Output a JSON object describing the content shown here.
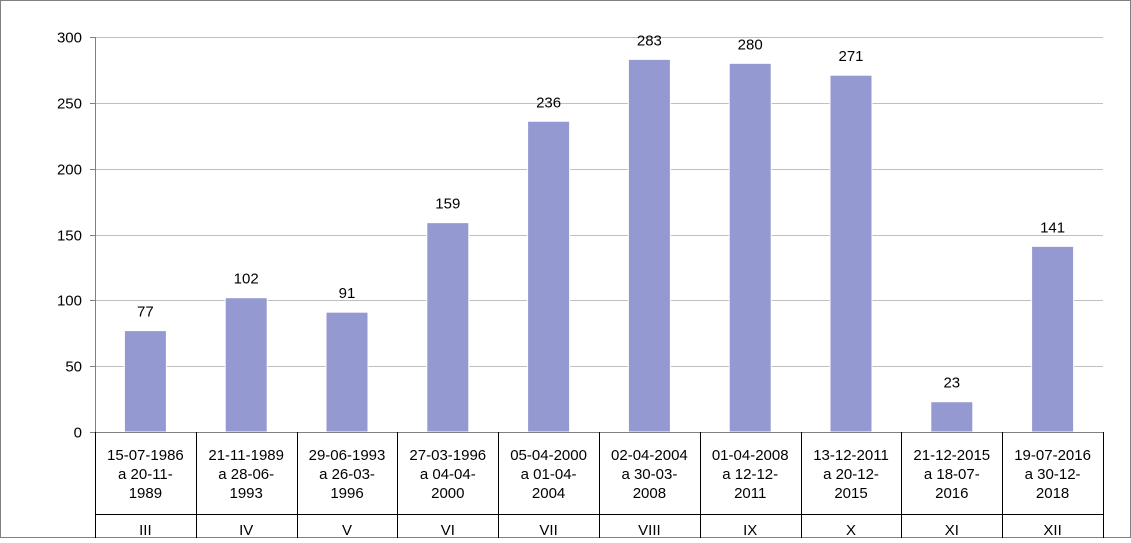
{
  "chart_data": {
    "type": "bar",
    "title": "",
    "xlabel": "",
    "ylabel": "",
    "ylim": [
      0,
      300
    ],
    "yticks": [
      0,
      50,
      100,
      150,
      200,
      250,
      300
    ],
    "grid": true,
    "legend": "none",
    "categories": [
      {
        "dates": [
          "15-07-1986",
          "a 20-11-",
          "1989"
        ],
        "legislature": "III"
      },
      {
        "dates": [
          "21-11-1989",
          "a 28-06-",
          "1993"
        ],
        "legislature": "IV"
      },
      {
        "dates": [
          "29-06-1993",
          "a 26-03-",
          "1996"
        ],
        "legislature": "V"
      },
      {
        "dates": [
          "27-03-1996",
          "a 04-04-",
          "2000"
        ],
        "legislature": "VI"
      },
      {
        "dates": [
          "05-04-2000",
          "a 01-04-",
          "2004"
        ],
        "legislature": "VII"
      },
      {
        "dates": [
          "02-04-2004",
          "a 30-03-",
          "2008"
        ],
        "legislature": "VIII"
      },
      {
        "dates": [
          "01-04-2008",
          "a 12-12-",
          "2011"
        ],
        "legislature": "IX"
      },
      {
        "dates": [
          "13-12-2011",
          "a 20-12-",
          "2015"
        ],
        "legislature": "X"
      },
      {
        "dates": [
          "21-12-2015",
          "a 18-07-",
          "2016"
        ],
        "legislature": "XI"
      },
      {
        "dates": [
          "19-07-2016",
          "a 30-12-",
          "2018"
        ],
        "legislature": "XII"
      }
    ],
    "series": [
      {
        "values": [
          77,
          102,
          91,
          159,
          236,
          283,
          280,
          271,
          23,
          141
        ]
      }
    ],
    "colors": {
      "bar_fill": "#9599d1",
      "bar_stroke": "#ffffff",
      "grid": "#bfbfbf",
      "axis": "#808080"
    }
  }
}
